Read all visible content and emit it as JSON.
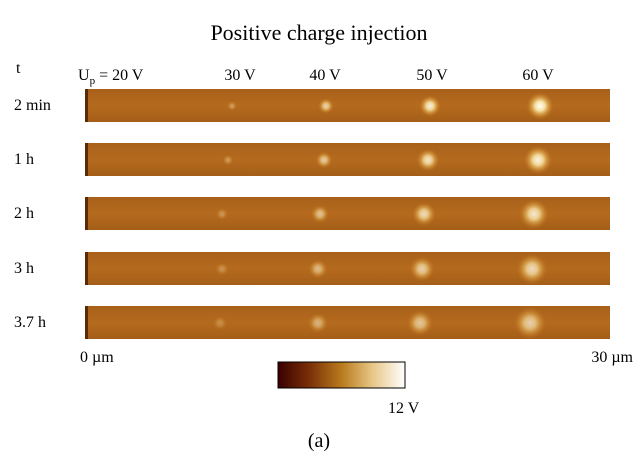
{
  "title": "Positive charge injection",
  "time_header": "t",
  "voltage_header": {
    "symbol": "U",
    "subscript": "p",
    "rest": "= 20 V"
  },
  "voltages": [
    "30 V",
    "40 V",
    "50 V",
    "60 V"
  ],
  "rows": [
    "2 min",
    "1 h",
    "2 h",
    "3 h",
    "3.7 h"
  ],
  "scale": {
    "start": "0 µm",
    "end": "30 µm"
  },
  "colorbar": {
    "max_label": "12 V"
  },
  "caption": "(a)"
}
